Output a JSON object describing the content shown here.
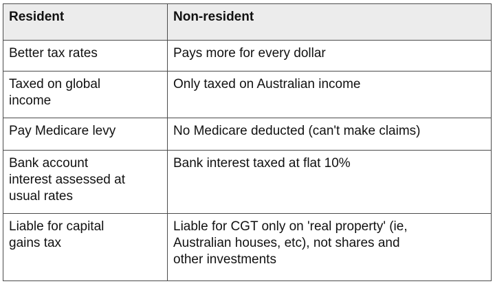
{
  "table": {
    "header": [
      "Resident",
      "Non-resident"
    ],
    "rows": [
      [
        "Better tax rates",
        "Pays more for every dollar"
      ],
      [
        "Taxed on global\nincome",
        "Only taxed on Australian income"
      ],
      [
        "Pay Medicare levy",
        "No Medicare deducted (can't make claims)"
      ],
      [
        "Bank account\ninterest assessed at\nusual rates",
        "Bank interest taxed at flat 10%"
      ],
      [
        "Liable for capital\ngains tax",
        "Liable for CGT only on 'real property' (ie,\nAustralian houses, etc), not shares and\nother investments"
      ]
    ]
  }
}
